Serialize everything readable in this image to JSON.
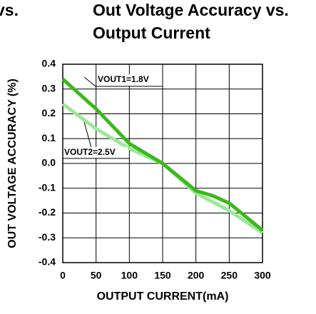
{
  "clipped_title": "vs.",
  "chart_data": {
    "type": "line",
    "title": [
      "Out Voltage Accuracy vs.",
      "Output Current"
    ],
    "x_label": "OUTPUT CURRENT(mA)",
    "y_label": "OUT VOLTAGE ACCURACY (%)",
    "x": [
      0,
      50,
      100,
      150,
      200,
      225,
      250,
      300
    ],
    "series": [
      {
        "name": "VOUT1=1.8V",
        "color": "#3cb81e",
        "values": [
          0.34,
          0.22,
          0.08,
          0.0,
          -0.11,
          -0.13,
          -0.16,
          -0.27
        ]
      },
      {
        "name": "VOUT2=2.5V",
        "color": "#9ee69a",
        "values": [
          0.24,
          0.14,
          0.06,
          0.0,
          -0.12,
          -0.155,
          -0.19,
          -0.28
        ]
      }
    ],
    "xlim": [
      0,
      300
    ],
    "xticks": [
      0,
      50,
      100,
      150,
      200,
      250,
      300
    ],
    "ylim": [
      -0.4,
      0.4
    ],
    "yticks": [
      0.4,
      0.3,
      0.2,
      0.1,
      {
        "value": 0,
        "label": "0.0"
      },
      -0.1,
      -0.2,
      -0.3,
      -0.4
    ],
    "grid": true
  }
}
